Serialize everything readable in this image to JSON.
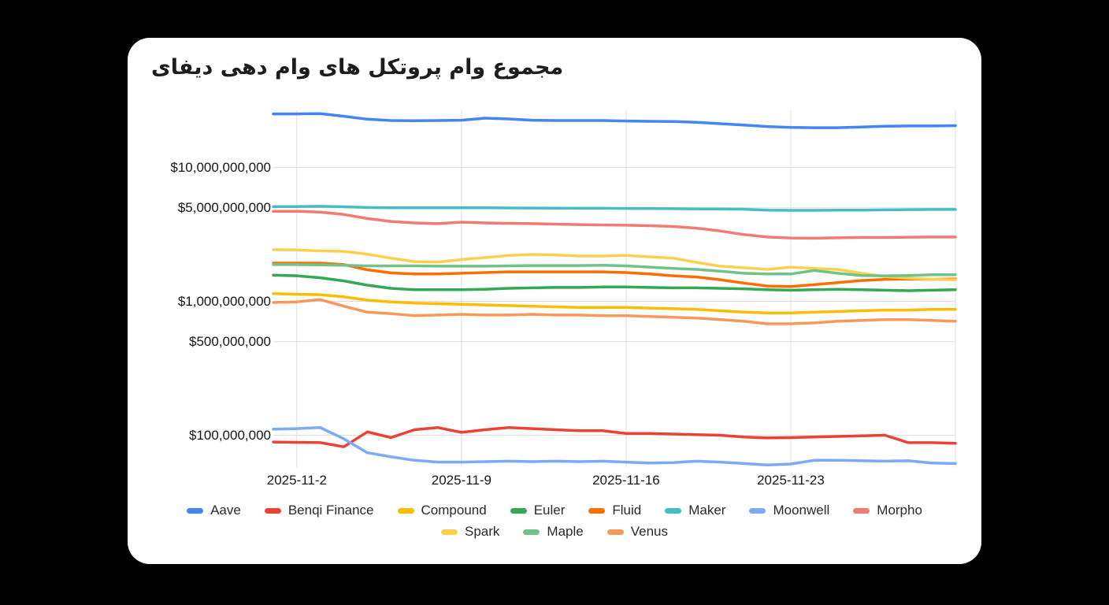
{
  "page": {
    "background_color": "#000000",
    "card_background_color": "#ffffff"
  },
  "title": "مجموع وام پروتکل های وام دهی دیفای",
  "chart_data": {
    "type": "line",
    "title": "مجموع وام پروتکل های وام دهی دیفای",
    "unit": "USD",
    "y_axis": {
      "scale": "log",
      "grid": true,
      "tick_labels": [
        "$10,000,000,000",
        "$5,000,000,000",
        "$1,000,000,000",
        "$500,000,000",
        "$100,000,000"
      ],
      "tick_values_busd": [
        10,
        5,
        1,
        0.5,
        0.1
      ]
    },
    "x_axis": {
      "dates": [
        "2025-11-1",
        "2025-11-2",
        "2025-11-3",
        "2025-11-4",
        "2025-11-5",
        "2025-11-6",
        "2025-11-7",
        "2025-11-8",
        "2025-11-9",
        "2025-11-10",
        "2025-11-11",
        "2025-11-12",
        "2025-11-13",
        "2025-11-14",
        "2025-11-15",
        "2025-11-16",
        "2025-11-17",
        "2025-11-18",
        "2025-11-19",
        "2025-11-20",
        "2025-11-21",
        "2025-11-22",
        "2025-11-23",
        "2025-11-24",
        "2025-11-25",
        "2025-11-26",
        "2025-11-27",
        "2025-11-28",
        "2025-11-29",
        "2025-11-30"
      ],
      "tick_labels": [
        "2025-11-2",
        "2025-11-9",
        "2025-11-16",
        "2025-11-23"
      ],
      "tick_indices": [
        1,
        8,
        15,
        22
      ]
    },
    "legend_position": "bottom",
    "grid_color": "#dedede",
    "series": [
      {
        "name": "Aave",
        "color": "#4285F4",
        "values_busd": [
          25.1,
          25.1,
          25.2,
          24.1,
          22.9,
          22.4,
          22.3,
          22.4,
          22.5,
          23.3,
          23.0,
          22.5,
          22.4,
          22.4,
          22.4,
          22.2,
          22.1,
          22.0,
          21.7,
          21.2,
          20.7,
          20.2,
          19.9,
          19.8,
          19.8,
          20.0,
          20.3,
          20.4,
          20.4,
          20.5
        ]
      },
      {
        "name": "Benqi Finance",
        "color": "#EA4335",
        "values_busd": [
          0.089,
          0.0885,
          0.088,
          0.082,
          0.106,
          0.096,
          0.11,
          0.114,
          0.105,
          0.11,
          0.114,
          0.112,
          0.11,
          0.108,
          0.108,
          0.103,
          0.103,
          0.102,
          0.101,
          0.1,
          0.097,
          0.0955,
          0.096,
          0.097,
          0.098,
          0.099,
          0.1,
          0.088,
          0.088,
          0.087
        ]
      },
      {
        "name": "Compound",
        "color": "#FBBC04",
        "values_busd": [
          1.14,
          1.13,
          1.12,
          1.08,
          1.02,
          0.99,
          0.97,
          0.96,
          0.95,
          0.94,
          0.93,
          0.92,
          0.91,
          0.9,
          0.9,
          0.9,
          0.89,
          0.88,
          0.87,
          0.85,
          0.83,
          0.82,
          0.82,
          0.83,
          0.84,
          0.85,
          0.86,
          0.86,
          0.87,
          0.87
        ]
      },
      {
        "name": "Euler",
        "color": "#34A853",
        "values_busd": [
          1.57,
          1.55,
          1.5,
          1.42,
          1.32,
          1.25,
          1.22,
          1.22,
          1.22,
          1.23,
          1.25,
          1.26,
          1.27,
          1.27,
          1.28,
          1.28,
          1.27,
          1.26,
          1.26,
          1.25,
          1.24,
          1.22,
          1.21,
          1.22,
          1.23,
          1.22,
          1.21,
          1.2,
          1.21,
          1.22
        ]
      },
      {
        "name": "Fluid",
        "color": "#FF6D01",
        "values_busd": [
          1.93,
          1.93,
          1.93,
          1.88,
          1.72,
          1.63,
          1.6,
          1.6,
          1.62,
          1.64,
          1.66,
          1.66,
          1.66,
          1.66,
          1.66,
          1.64,
          1.6,
          1.55,
          1.52,
          1.45,
          1.37,
          1.3,
          1.29,
          1.33,
          1.38,
          1.43,
          1.46,
          1.47,
          1.46,
          1.47
        ]
      },
      {
        "name": "Maker",
        "color": "#46BDC6",
        "values_busd": [
          5.1,
          5.1,
          5.12,
          5.08,
          5.02,
          5.0,
          5.0,
          5.0,
          5.0,
          4.99,
          4.98,
          4.97,
          4.96,
          4.95,
          4.95,
          4.94,
          4.93,
          4.92,
          4.9,
          4.89,
          4.87,
          4.8,
          4.78,
          4.78,
          4.79,
          4.8,
          4.82,
          4.84,
          4.85,
          4.85
        ]
      },
      {
        "name": "Moonwell",
        "color": "#7BAAF7",
        "values_busd": [
          0.111,
          0.112,
          0.114,
          0.094,
          0.074,
          0.069,
          0.065,
          0.063,
          0.063,
          0.0635,
          0.064,
          0.0635,
          0.064,
          0.0635,
          0.064,
          0.063,
          0.062,
          0.0625,
          0.064,
          0.063,
          0.0615,
          0.06,
          0.061,
          0.065,
          0.065,
          0.0645,
          0.064,
          0.0645,
          0.062,
          0.0615
        ]
      },
      {
        "name": "Morpho",
        "color": "#F07B72",
        "values_busd": [
          4.7,
          4.7,
          4.64,
          4.45,
          4.15,
          3.95,
          3.85,
          3.8,
          3.9,
          3.85,
          3.82,
          3.8,
          3.77,
          3.74,
          3.72,
          3.7,
          3.67,
          3.62,
          3.52,
          3.35,
          3.15,
          3.02,
          2.97,
          2.96,
          2.98,
          3.0,
          3.0,
          3.01,
          3.02,
          3.02
        ]
      },
      {
        "name": "Spark",
        "color": "#FCD04F",
        "values_busd": [
          2.43,
          2.42,
          2.38,
          2.36,
          2.25,
          2.1,
          1.98,
          1.96,
          2.05,
          2.12,
          2.2,
          2.24,
          2.22,
          2.18,
          2.18,
          2.2,
          2.15,
          2.1,
          1.95,
          1.83,
          1.78,
          1.73,
          1.8,
          1.76,
          1.73,
          1.62,
          1.53,
          1.49,
          1.46,
          1.45
        ]
      },
      {
        "name": "Maple",
        "color": "#71C287",
        "values_busd": [
          1.88,
          1.88,
          1.87,
          1.86,
          1.84,
          1.84,
          1.84,
          1.83,
          1.83,
          1.83,
          1.84,
          1.85,
          1.85,
          1.85,
          1.86,
          1.84,
          1.8,
          1.76,
          1.73,
          1.68,
          1.62,
          1.6,
          1.6,
          1.7,
          1.62,
          1.56,
          1.55,
          1.56,
          1.58,
          1.58
        ]
      },
      {
        "name": "Venus",
        "color": "#F8995A",
        "values_busd": [
          0.98,
          0.99,
          1.03,
          0.92,
          0.83,
          0.81,
          0.78,
          0.79,
          0.8,
          0.79,
          0.79,
          0.8,
          0.79,
          0.79,
          0.78,
          0.78,
          0.77,
          0.76,
          0.75,
          0.73,
          0.71,
          0.68,
          0.68,
          0.69,
          0.71,
          0.72,
          0.73,
          0.73,
          0.72,
          0.71
        ]
      }
    ]
  },
  "legend": {
    "rows": [
      [
        "Aave",
        "Benqi Finance",
        "Compound",
        "Euler",
        "Fluid",
        "Maker",
        "Moonwell",
        "Morpho"
      ],
      [
        "Spark",
        "Maple",
        "Venus"
      ]
    ]
  }
}
